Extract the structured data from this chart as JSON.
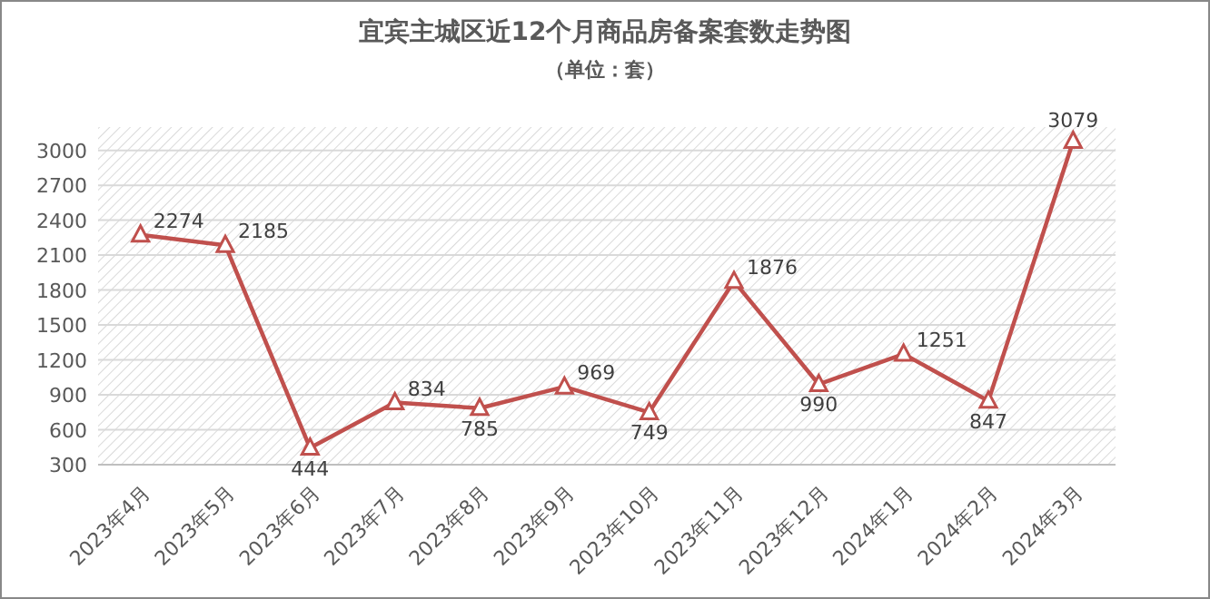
{
  "chart_data": {
    "type": "line",
    "title": "宜宾主城区近12个月商品房备案套数走势图",
    "subtitle": "（单位：套）",
    "categories": [
      "2023年4月",
      "2023年5月",
      "2023年6月",
      "2023年7月",
      "2023年8月",
      "2023年9月",
      "2023年10月",
      "2023年11月",
      "2023年12月",
      "2024年1月",
      "2024年2月",
      "2024年3月"
    ],
    "series": [
      {
        "color": "#c0504d",
        "values": [
          2274,
          2185,
          444,
          834,
          785,
          969,
          749,
          1876,
          990,
          1251,
          847,
          3079
        ]
      }
    ],
    "ylim": [
      300,
      3200
    ],
    "yticks": [
      300,
      600,
      900,
      1200,
      1500,
      1800,
      2100,
      2400,
      2700,
      3000
    ],
    "grid": "y",
    "marker": "triangle",
    "line_style": "solid",
    "data_labels": true
  }
}
